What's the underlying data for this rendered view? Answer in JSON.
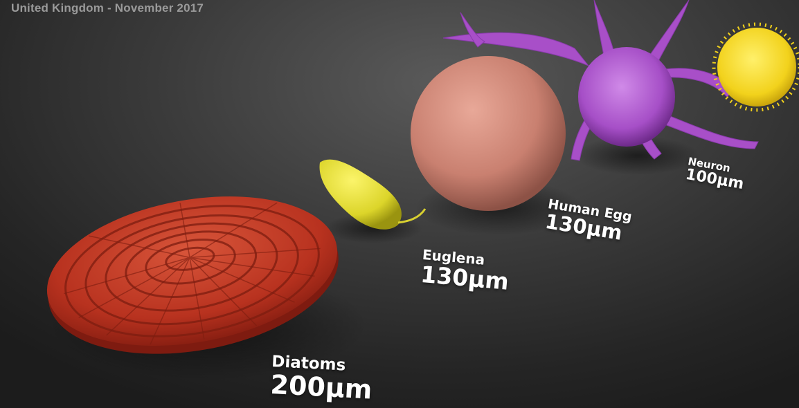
{
  "caption": "United Kingdom - November 2017",
  "objects": [
    {
      "name": "Diatoms",
      "size": "200µm",
      "color": "#c23a24"
    },
    {
      "name": "Euglena",
      "size": "130µm",
      "color": "#e6e030"
    },
    {
      "name": "Human Egg",
      "size": "130µm",
      "color": "#d48878"
    },
    {
      "name": "Neuron",
      "size": "100µm",
      "color": "#a84fc8"
    },
    {
      "name": "Pollen",
      "color": "#f2d21c"
    }
  ],
  "colors": {
    "background": "#3b3b3b",
    "label_text": "#ffffff",
    "caption_text": "#9a9a9a"
  }
}
